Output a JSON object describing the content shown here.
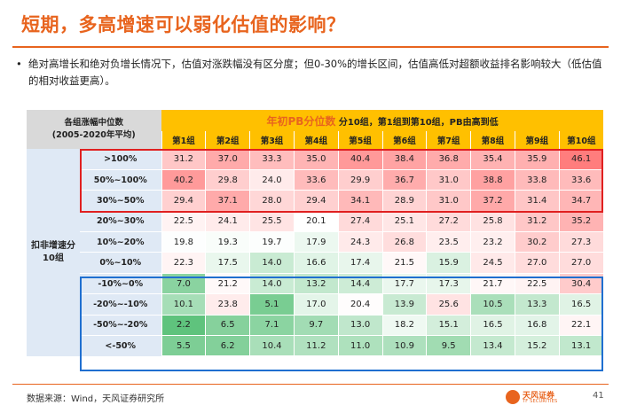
{
  "header": {
    "title": "短期，多高增速可以弱化估值的影响？"
  },
  "bullet": {
    "marker": "•",
    "text": "绝对高增长和绝对负增长情况下，估值对涨跌幅没有区分度；但0-30%的增长区间，估值高低对超额收益排名影响较大（低估值的相对收益更高）。"
  },
  "table": {
    "corner_label": "各组涨幅中位数\n(2005-2020年平均)",
    "top_header_big": "年初PB分位数",
    "top_header_small": " 分10组，第1组到第10组，PB由高到低",
    "side_label": "扣非增速分\n10组",
    "columns": [
      "第1组",
      "第2组",
      "第3组",
      "第4组",
      "第5组",
      "第6组",
      "第7组",
      "第8组",
      "第9组",
      "第10组"
    ],
    "rows": [
      {
        "label": ">100%",
        "values": [
          "31.2",
          "37.0",
          "33.3",
          "35.0",
          "40.4",
          "38.4",
          "36.8",
          "35.4",
          "35.9",
          "46.1"
        ]
      },
      {
        "label": "50%~100%",
        "values": [
          "40.2",
          "29.8",
          "24.0",
          "33.6",
          "29.9",
          "36.7",
          "31.0",
          "38.8",
          "33.8",
          "33.6"
        ]
      },
      {
        "label": "30%~50%",
        "values": [
          "29.4",
          "37.1",
          "28.0",
          "29.4",
          "34.1",
          "28.9",
          "31.0",
          "37.2",
          "31.4",
          "34.7"
        ]
      },
      {
        "label": "20%~30%",
        "values": [
          "22.5",
          "24.1",
          "25.5",
          "20.1",
          "27.4",
          "25.1",
          "27.2",
          "25.8",
          "31.2",
          "35.2"
        ]
      },
      {
        "label": "10%~20%",
        "values": [
          "19.8",
          "19.3",
          "19.7",
          "17.9",
          "24.3",
          "26.8",
          "23.5",
          "23.2",
          "30.2",
          "27.3"
        ]
      },
      {
        "label": "0%~10%",
        "values": [
          "22.3",
          "17.5",
          "14.0",
          "16.6",
          "17.4",
          "21.5",
          "15.9",
          "24.5",
          "27.0",
          "27.0"
        ]
      },
      {
        "label": "-10%~0%",
        "values": [
          "7.0",
          "21.2",
          "14.0",
          "13.2",
          "14.4",
          "17.7",
          "17.3",
          "21.7",
          "22.5",
          "30.4"
        ]
      },
      {
        "label": "-20%~-10%",
        "values": [
          "10.1",
          "23.8",
          "5.1",
          "17.0",
          "20.4",
          "13.9",
          "25.6",
          "10.5",
          "13.3",
          "16.5"
        ]
      },
      {
        "label": "-50%~-20%",
        "values": [
          "2.2",
          "6.5",
          "7.1",
          "9.7",
          "13.0",
          "18.2",
          "15.1",
          "16.5",
          "16.8",
          "22.1"
        ]
      },
      {
        "label": "<-50%",
        "values": [
          "5.5",
          "6.2",
          "10.4",
          "11.2",
          "11.0",
          "10.9",
          "9.5",
          "13.4",
          "15.2",
          "13.1"
        ]
      }
    ]
  },
  "footer": {
    "source": "数据来源：Wind，天风证券研究所",
    "logo_text": "天风证券",
    "logo_sub": "TF SECURITIES",
    "page_number": "41"
  },
  "colors": {
    "accent": "#e8641e",
    "header_yellow": "#ffc000",
    "side_blue": "#dfe9f5",
    "box_red": "#e02020",
    "box_blue": "#1f6fd0"
  }
}
